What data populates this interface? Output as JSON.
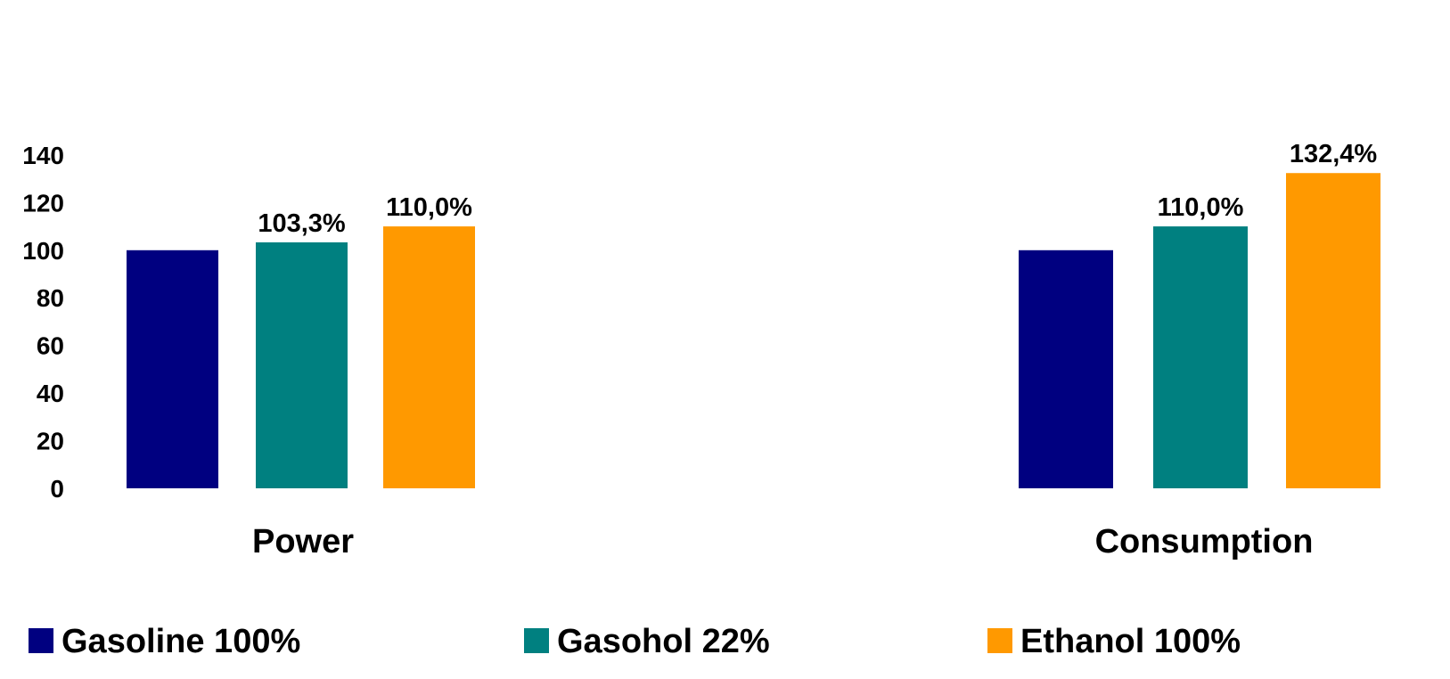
{
  "chart_data": {
    "type": "bar",
    "categories": [
      "Power",
      "Consumption"
    ],
    "series": [
      {
        "name": "Gasoline 100%",
        "color": "#000080",
        "values": [
          100,
          100
        ],
        "labels": [
          "",
          ""
        ]
      },
      {
        "name": "Gasohol 22%",
        "color": "#008080",
        "values": [
          103.3,
          110.0
        ],
        "labels": [
          "103,3%",
          "110,0%"
        ]
      },
      {
        "name": "Ethanol 100%",
        "color": "#FF9900",
        "values": [
          110.0,
          132.4
        ],
        "labels": [
          "110,0%",
          "132,4%"
        ]
      }
    ],
    "yticks": [
      "0",
      "20",
      "40",
      "60",
      "80",
      "100",
      "120",
      "140"
    ],
    "ylim": [
      0,
      140
    ],
    "title": "",
    "xlabel": "",
    "ylabel": "",
    "grid": false,
    "legend": "bottom"
  }
}
